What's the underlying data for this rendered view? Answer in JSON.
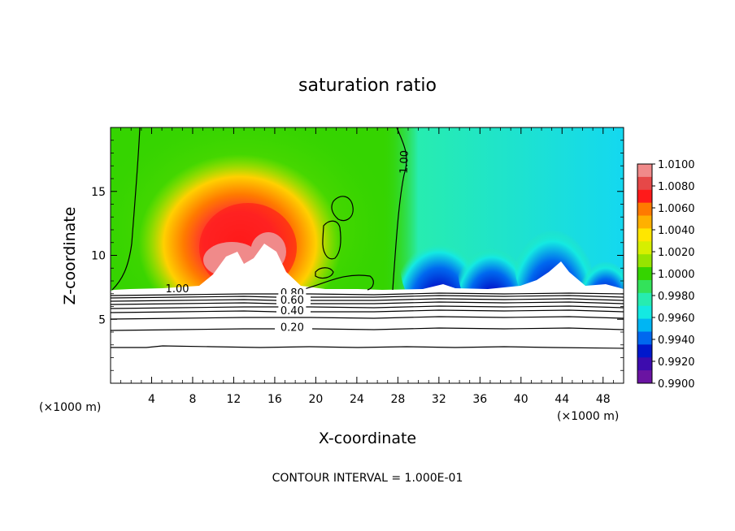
{
  "chart_data": {
    "type": "heatmap",
    "title": "saturation ratio",
    "xlabel": "X-coordinate",
    "ylabel": "Z-coordinate",
    "x_unit_left": "(×1000 m)",
    "x_unit_right": "(×1000 m)",
    "footer": "CONTOUR INTERVAL = 1.000E-01",
    "xlim": [
      0,
      50
    ],
    "ylim": [
      0,
      20
    ],
    "x_ticks": [
      4,
      8,
      12,
      16,
      20,
      24,
      28,
      32,
      36,
      40,
      44,
      48
    ],
    "x_tick_labels": [
      "4",
      "8",
      "12",
      "16",
      "20",
      "24",
      "28",
      "32",
      "36",
      "40",
      "44",
      "48"
    ],
    "y_ticks": [
      5,
      10,
      15
    ],
    "y_tick_labels": [
      "5",
      "10",
      "15"
    ],
    "colorbar": {
      "min": 0.99,
      "max": 1.01,
      "labels": [
        "1.0100",
        "1.0080",
        "1.0060",
        "1.0040",
        "1.0020",
        "1.0000",
        "0.9980",
        "0.9960",
        "0.9940",
        "0.9920",
        "0.9900"
      ],
      "colors": [
        "#f08a8a",
        "#e64848",
        "#ff1a1a",
        "#ff7a00",
        "#ffb000",
        "#ffe600",
        "#d6ef00",
        "#96e400",
        "#35d400",
        "#33e25a",
        "#27ecb0",
        "#14e9e2",
        "#00b5f3",
        "#0068ef",
        "#0018cc",
        "#3d0cae",
        "#6a14a2"
      ]
    },
    "contour_labels": [
      {
        "text": "1.00",
        "x": 6.5,
        "z": 7.3
      },
      {
        "text": "1.00",
        "x": 28.7,
        "z": 17.3
      },
      {
        "text": "0.80",
        "x": 17.7,
        "z": 7.0
      },
      {
        "text": "0.60",
        "x": 17.7,
        "z": 6.4
      },
      {
        "text": "0.40",
        "x": 17.7,
        "z": 5.6
      },
      {
        "text": "0.20",
        "x": 17.7,
        "z": 4.3
      }
    ]
  }
}
